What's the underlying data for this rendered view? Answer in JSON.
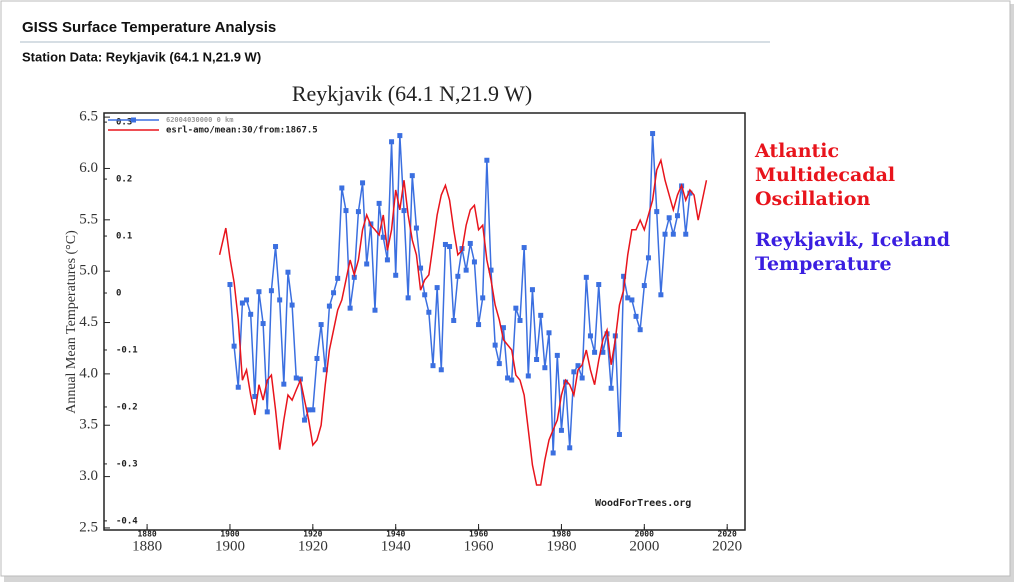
{
  "header": {
    "title": "GISS Surface Temperature Analysis",
    "subtitle": "Station Data: Reykjavik (64.1 N,21.9 W)"
  },
  "annotations": [
    {
      "lines": [
        "Atlantic",
        "Multidecadal",
        "Oscillation"
      ],
      "color": "#e8141c"
    },
    {
      "lines": [
        "Reykjavik, Iceland",
        "Temperature"
      ],
      "color": "#3a1ee0"
    }
  ],
  "chart_data": {
    "type": "line",
    "title": "Reykjavik (64.1 N,21.9 W)",
    "y_label": "Annual Mean Temperatures (°C)",
    "watermark": "WoodForTrees.org",
    "xlim": [
      1869.6,
      2024.3
    ],
    "xticks": [
      1880,
      1900,
      1920,
      1940,
      1960,
      1980,
      2000,
      2020
    ],
    "x2ticks": [
      1880,
      1900,
      1920,
      1940,
      1960,
      1980,
      2000,
      2020
    ],
    "ylim": [
      2.48,
      6.54
    ],
    "yticks": [
      2.5,
      {
        "value": 3,
        "label": "3.0"
      },
      3.5,
      {
        "value": 4,
        "label": "4.0"
      },
      4.5,
      {
        "value": 5,
        "label": "5.0"
      },
      5.5,
      {
        "value": 6,
        "label": "6.0"
      },
      6.5
    ],
    "y2lim": [
      -0.416,
      0.316
    ],
    "y2ticks": [
      -0.4,
      -0.3,
      -0.2,
      -0.1,
      0,
      0.1,
      0.2,
      0.3
    ],
    "grid": false,
    "series": [
      {
        "name": "62004030000 0 km",
        "color": "#3b6fe0",
        "axis": "y",
        "markers": true,
        "x": [
          1900,
          1901,
          1902,
          1903,
          1904,
          1905,
          1906,
          1907,
          1908,
          1909,
          1910,
          1911,
          1912,
          1913,
          1914,
          1915,
          1916,
          1917,
          1918,
          1919,
          1920,
          1921,
          1922,
          1923,
          1924,
          1925,
          1926,
          1927,
          1928,
          1929,
          1930,
          1931,
          1932,
          1933,
          1934,
          1935,
          1936,
          1937,
          1938,
          1939,
          1940,
          1941,
          1942,
          1943,
          1944,
          1945,
          1946,
          1947,
          1948,
          1949,
          1950,
          1951,
          1952,
          1953,
          1954,
          1955,
          1956,
          1957,
          1958,
          1959,
          1960,
          1961,
          1962,
          1963,
          1964,
          1965,
          1966,
          1967,
          1968,
          1969,
          1970,
          1971,
          1972,
          1973,
          1974,
          1975,
          1976,
          1977,
          1978,
          1979,
          1980,
          1981,
          1982,
          1983,
          1984,
          1985,
          1986,
          1987,
          1988,
          1989,
          1990,
          1991,
          1992,
          1993,
          1994,
          1995,
          1996,
          1997,
          1998,
          1999,
          2000,
          2001,
          2002,
          2003,
          2004,
          2005,
          2006,
          2007,
          2008,
          2009,
          2010,
          2011
        ],
        "values": [
          4.87,
          4.27,
          3.87,
          4.69,
          4.72,
          4.58,
          3.78,
          4.8,
          4.49,
          3.63,
          4.81,
          5.24,
          4.72,
          3.9,
          4.99,
          4.67,
          3.96,
          3.95,
          3.55,
          3.65,
          3.65,
          4.15,
          4.48,
          4.04,
          4.66,
          4.79,
          4.93,
          5.81,
          5.59,
          4.64,
          4.94,
          5.58,
          5.86,
          5.07,
          5.46,
          4.62,
          5.66,
          5.33,
          5.11,
          6.26,
          4.96,
          6.32,
          5.59,
          4.74,
          5.93,
          5.42,
          5.03,
          4.77,
          4.6,
          4.08,
          4.84,
          4.04,
          5.26,
          5.24,
          4.52,
          4.95,
          5.22,
          5.01,
          5.27,
          5.09,
          4.48,
          4.74,
          6.08,
          5.01,
          4.28,
          4.1,
          4.45,
          3.96,
          3.94,
          4.64,
          4.52,
          5.23,
          3.98,
          4.82,
          4.14,
          4.57,
          4.06,
          4.4,
          3.23,
          4.18,
          3.45,
          3.92,
          3.28,
          4.02,
          4.08,
          3.96,
          4.94,
          4.37,
          4.21,
          4.87,
          4.21,
          4.39,
          3.86,
          4.37,
          3.41,
          4.95,
          4.74,
          4.72,
          4.56,
          4.43,
          4.86,
          5.13,
          6.34,
          5.58,
          4.77,
          5.36,
          5.52,
          5.36,
          5.54,
          5.83,
          5.36,
          5.76
        ]
      },
      {
        "name": "esrl-amo/mean:30/from:1867.5",
        "color": "#e8141c",
        "axis": "y2",
        "markers": false,
        "x": [
          1897.5,
          1899,
          1900,
          1901,
          1902,
          1903,
          1904,
          1905,
          1906,
          1907,
          1908,
          1909,
          1910,
          1911,
          1912,
          1913,
          1914,
          1915,
          1916,
          1917,
          1918,
          1919,
          1920,
          1921,
          1922,
          1923,
          1924,
          1925,
          1926,
          1927,
          1928,
          1929,
          1930,
          1931,
          1932,
          1933,
          1934,
          1935,
          1936,
          1937,
          1938,
          1939,
          1940,
          1941,
          1942,
          1943,
          1944,
          1945,
          1946,
          1947,
          1948,
          1949,
          1950,
          1951,
          1952,
          1953,
          1954,
          1955,
          1956,
          1957,
          1958,
          1959,
          1960,
          1961,
          1962,
          1963,
          1964,
          1965,
          1966,
          1967,
          1968,
          1969,
          1970,
          1971,
          1972,
          1973,
          1974,
          1975,
          1976,
          1977,
          1978,
          1979,
          1980,
          1981,
          1982,
          1983,
          1984,
          1985,
          1986,
          1987,
          1988,
          1989,
          1990,
          1991,
          1992,
          1993,
          1994,
          1995,
          1996,
          1997,
          1998,
          1999,
          2000,
          2001,
          2002,
          2003,
          2004,
          2005,
          2006,
          2007,
          2008,
          2009,
          2010,
          2011,
          2012,
          2013,
          2014,
          2015
        ],
        "values": [
          0.067,
          0.114,
          0.061,
          0.019,
          -0.047,
          -0.153,
          -0.135,
          -0.179,
          -0.214,
          -0.161,
          -0.188,
          -0.153,
          -0.144,
          -0.205,
          -0.275,
          -0.223,
          -0.179,
          -0.188,
          -0.17,
          -0.153,
          -0.188,
          -0.223,
          -0.267,
          -0.258,
          -0.232,
          -0.161,
          -0.1,
          -0.065,
          -0.03,
          -0.012,
          0.023,
          0.058,
          0.032,
          0.058,
          0.111,
          0.137,
          0.119,
          0.111,
          0.102,
          0.137,
          0.075,
          0.111,
          0.181,
          0.146,
          0.198,
          0.137,
          0.093,
          0.067,
          0.005,
          0.023,
          0.032,
          0.084,
          0.137,
          0.172,
          0.189,
          0.163,
          0.111,
          0.067,
          0.075,
          0.119,
          0.146,
          0.154,
          0.111,
          0.119,
          0.058,
          0.023,
          -0.021,
          -0.047,
          -0.082,
          -0.091,
          -0.1,
          -0.144,
          -0.153,
          -0.179,
          -0.24,
          -0.302,
          -0.337,
          -0.337,
          -0.293,
          -0.258,
          -0.24,
          -0.223,
          -0.179,
          -0.153,
          -0.161,
          -0.179,
          -0.135,
          -0.126,
          -0.1,
          -0.135,
          -0.161,
          -0.118,
          -0.082,
          -0.065,
          -0.126,
          -0.082,
          -0.021,
          0.005,
          0.067,
          0.111,
          0.111,
          0.128,
          0.111,
          0.137,
          0.163,
          0.216,
          0.233,
          0.198,
          0.172,
          0.146,
          0.172,
          0.189,
          0.163,
          0.181,
          0.172,
          0.128,
          0.163,
          0.198
        ]
      }
    ]
  }
}
